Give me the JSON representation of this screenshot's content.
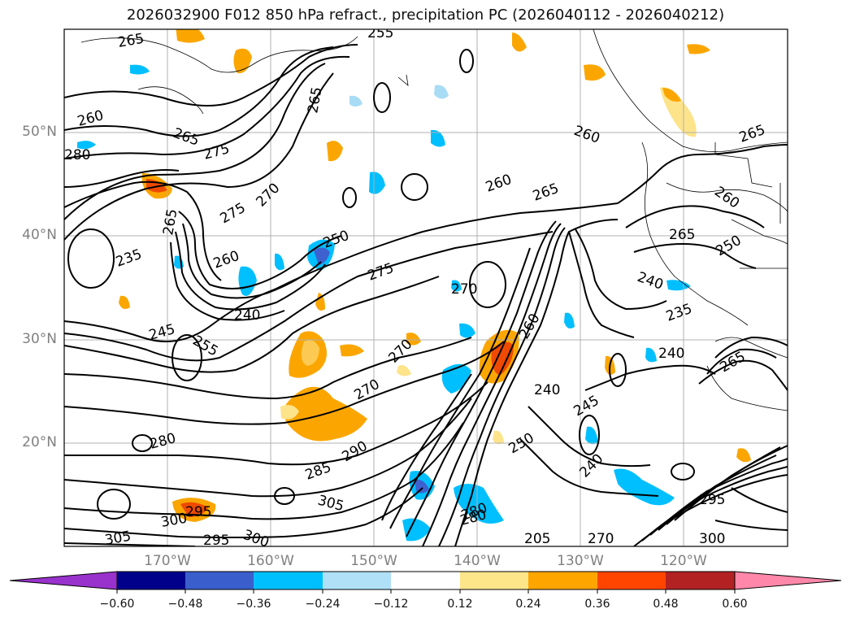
{
  "title": "2026032900 F012 850 hPa refract., precipitation PC (2026040112 - 2026040212)",
  "map": {
    "lat_labels": [
      "50°N",
      "40°N",
      "30°N",
      "20°N"
    ],
    "lon_labels": [
      "170°W",
      "160°W",
      "150°W",
      "140°W",
      "130°W",
      "120°W"
    ],
    "contour_labels": [
      "265",
      "255",
      "265",
      "260",
      "265",
      "275",
      "280",
      "270",
      "275",
      "265",
      "235",
      "260",
      "250",
      "240",
      "275",
      "270",
      "270",
      "245",
      "255",
      "270",
      "280",
      "260",
      "240",
      "280",
      "270",
      "245",
      "250",
      "285",
      "290",
      "240",
      "305",
      "300",
      "295",
      "305",
      "295",
      "280",
      "300",
      "205",
      "295",
      "260",
      "260",
      "265",
      "260",
      "265",
      "250",
      "240",
      "235",
      "240",
      "265",
      "265",
      "300"
    ],
    "colors": {
      "contour": "#000000",
      "grid": "#b0b0b0",
      "pos_light": "#fde38a",
      "pos_mid": "#fba600",
      "pos_strong": "#ee4a00",
      "neg_light": "#a8dcf5",
      "neg_mid": "#00bfff",
      "neg_strong": "#3d62cf"
    }
  },
  "colorbar": {
    "ticks": [
      "−0.60",
      "−0.48",
      "−0.36",
      "−0.24",
      "−0.12",
      "0.12",
      "0.24",
      "0.36",
      "0.48",
      "0.60"
    ],
    "colors": [
      "#9932cc",
      "#00008b",
      "#3a5fcd",
      "#00bfff",
      "#afe0f8",
      "#ffffff",
      "#fde68a",
      "#ffa500",
      "#ff4500",
      "#b22222",
      "#ff88aa"
    ]
  }
}
